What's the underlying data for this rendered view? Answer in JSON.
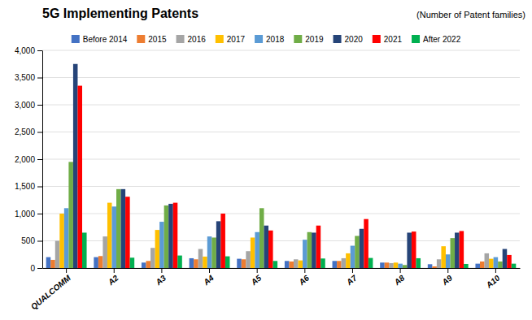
{
  "chart_data": {
    "type": "bar",
    "title": "5G Implementing Patents",
    "subtitle": "(Number of Patent families)",
    "categories": [
      "QUALCOMM",
      "A2",
      "A3",
      "A4",
      "A5",
      "A6",
      "A7",
      "A8",
      "A9",
      "A10"
    ],
    "series": [
      {
        "name": "Before 2014",
        "color": "#4472C4",
        "values": [
          200,
          200,
          100,
          180,
          170,
          130,
          130,
          100,
          70,
          80
        ]
      },
      {
        "name": "2015",
        "color": "#ED7D31",
        "values": [
          150,
          220,
          130,
          160,
          160,
          120,
          130,
          100,
          30,
          120
        ]
      },
      {
        "name": "2016",
        "color": "#A5A5A5",
        "values": [
          500,
          580,
          370,
          350,
          310,
          160,
          180,
          90,
          160,
          270
        ]
      },
      {
        "name": "2017",
        "color": "#FFC000",
        "values": [
          1000,
          1200,
          700,
          210,
          560,
          140,
          270,
          100,
          400,
          170
        ]
      },
      {
        "name": "2018",
        "color": "#5B9BD5",
        "values": [
          1100,
          1130,
          850,
          580,
          660,
          520,
          410,
          80,
          250,
          200
        ]
      },
      {
        "name": "2019",
        "color": "#70AD47",
        "values": [
          1950,
          1450,
          1150,
          560,
          1100,
          660,
          590,
          55,
          550,
          120
        ]
      },
      {
        "name": "2020",
        "color": "#264478",
        "values": [
          3750,
          1450,
          1180,
          860,
          780,
          650,
          720,
          650,
          650,
          350
        ]
      },
      {
        "name": "2021",
        "color": "#FF0000",
        "values": [
          3350,
          1310,
          1200,
          1000,
          690,
          780,
          900,
          670,
          680,
          240
        ]
      },
      {
        "name": "After 2022",
        "color": "#00B050",
        "values": [
          650,
          190,
          230,
          215,
          130,
          175,
          185,
          180,
          75,
          80
        ]
      }
    ],
    "ylim": [
      0,
      4000
    ],
    "yticks": [
      0,
      500,
      {
        "value": 1000,
        "label": "1,000"
      },
      {
        "value": 1500,
        "label": "1,500"
      },
      {
        "value": 2000,
        "label": "2,000"
      },
      {
        "value": 2500,
        "label": "2,500"
      },
      {
        "value": 3000,
        "label": "3,000"
      },
      {
        "value": 3500,
        "label": "3,500"
      },
      {
        "value": 4000,
        "label": "4,000"
      }
    ],
    "grid": true,
    "legend": "top"
  }
}
